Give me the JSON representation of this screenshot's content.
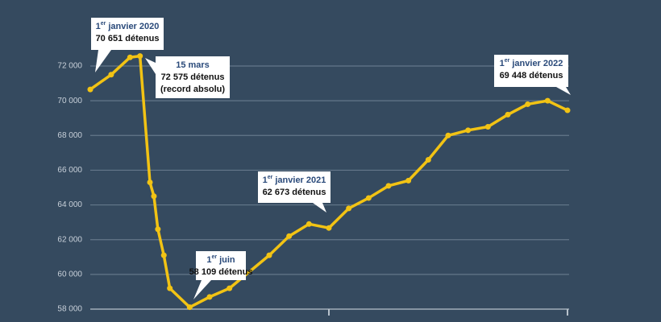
{
  "chart_data": {
    "type": "line",
    "x": [
      0,
      1.05,
      2,
      2.5,
      3,
      3.2,
      3.4,
      3.7,
      4,
      5,
      6,
      7,
      9,
      10,
      11,
      12,
      13,
      14,
      15,
      16,
      17,
      18,
      19,
      20,
      21,
      22,
      23,
      24
    ],
    "series": [
      {
        "color": "#f2c314",
        "values": [
          70651,
          71500,
          72500,
          72575,
          65300,
          64500,
          62600,
          61100,
          59200,
          58109,
          58700,
          59200,
          61100,
          62200,
          62900,
          62673,
          63800,
          64400,
          65100,
          65400,
          66600,
          68000,
          68300,
          68500,
          69200,
          69800,
          70000,
          69448
        ]
      }
    ],
    "xlim": [
      0,
      24
    ],
    "xticks": [
      12,
      24
    ],
    "ylim": [
      58000,
      72000
    ],
    "yticks": [
      {
        "value": 58000,
        "label": "58 000"
      },
      {
        "value": 60000,
        "label": "60 000"
      },
      {
        "value": 62000,
        "label": "62 000"
      },
      {
        "value": 64000,
        "label": "64 000"
      },
      {
        "value": 66000,
        "label": "66 000"
      },
      {
        "value": 68000,
        "label": "68 000"
      },
      {
        "value": 70000,
        "label": "70 000"
      },
      {
        "value": 72000,
        "label": "72 000"
      }
    ],
    "grid": true,
    "annotations": [
      {
        "date_day": "1",
        "date_sup": "er",
        "date": "janvier 2020",
        "text": "70 651 détenus"
      },
      {
        "date": "15 mars",
        "text": "72 575 détenus",
        "note": "(record absolu)"
      },
      {
        "date_day": "1",
        "date_sup": "er",
        "date": "juin",
        "text": "58 109 détenus"
      },
      {
        "date_day": "1",
        "date_sup": "er",
        "date": "janvier 2021",
        "text": "62 673 détenus"
      },
      {
        "date_day": "1",
        "date_sup": "er",
        "date": "janvier 2022",
        "text": "69 448 détenus"
      }
    ]
  }
}
